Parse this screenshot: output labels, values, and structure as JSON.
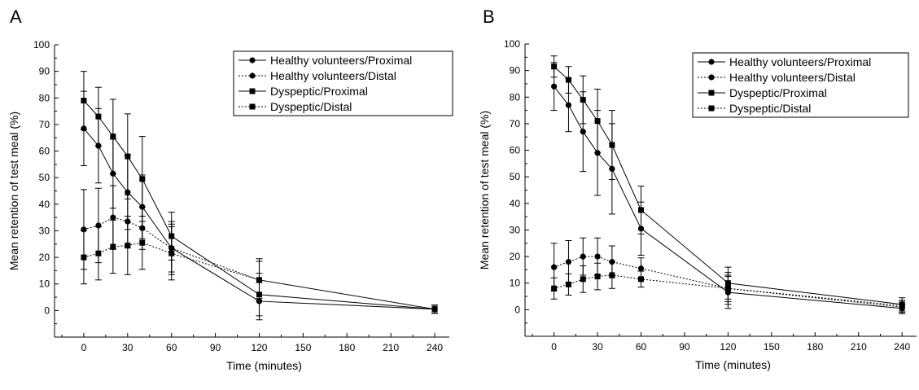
{
  "chart_data": [
    {
      "panel": "A",
      "type": "line",
      "xlabel": "Time (minutes)",
      "ylabel": "Mean retention of test meal (%)",
      "xlim": [
        -20,
        250
      ],
      "ylim": [
        -10,
        100
      ],
      "xticks": [
        0,
        30,
        60,
        90,
        120,
        150,
        180,
        210,
        240
      ],
      "yticks": [
        0,
        10,
        20,
        30,
        40,
        50,
        60,
        70,
        80,
        90,
        100
      ],
      "x": [
        0,
        10,
        20,
        30,
        40,
        60,
        120,
        240
      ],
      "legend_position": "top-right",
      "series": [
        {
          "name": "Healthy volunteers/Proximal",
          "marker": "circle",
          "line": "solid",
          "values": [
            68.5,
            62,
            51.5,
            44.5,
            39,
            23.5,
            3.5,
            0.5
          ],
          "errors": [
            14,
            14,
            13,
            14,
            12,
            10,
            7,
            1.5
          ]
        },
        {
          "name": "Healthy volunteers/Distal",
          "marker": "circle",
          "line": "dotted",
          "values": [
            30.5,
            32,
            35,
            33.5,
            31,
            23.5,
            11.5,
            0.5
          ],
          "errors": [
            15,
            14,
            12,
            10,
            8,
            9,
            7,
            1.5
          ]
        },
        {
          "name": "Dyspeptic/Proximal",
          "marker": "square",
          "line": "solid",
          "values": [
            79,
            73,
            65.5,
            58,
            49.5,
            28,
            6,
            0.5
          ],
          "errors": [
            11,
            11,
            14,
            16,
            16,
            9,
            8,
            1.5
          ]
        },
        {
          "name": "Dyspeptic/Distal",
          "marker": "square",
          "line": "dotted",
          "values": [
            20,
            21.5,
            24,
            24.5,
            25.5,
            21.5,
            11.5,
            0.5
          ],
          "errors": [
            10,
            10,
            10,
            11,
            10,
            10,
            8,
            1.5
          ]
        }
      ]
    },
    {
      "panel": "B",
      "type": "line",
      "xlabel": "Time (minutes)",
      "ylabel": "Mean retention of test meal (%)",
      "xlim": [
        -20,
        250
      ],
      "ylim": [
        -10,
        100
      ],
      "xticks": [
        0,
        30,
        60,
        90,
        120,
        150,
        180,
        210,
        240
      ],
      "yticks": [
        0,
        10,
        20,
        30,
        40,
        50,
        60,
        70,
        80,
        90,
        100
      ],
      "x": [
        0,
        10,
        20,
        30,
        40,
        60,
        120,
        240
      ],
      "legend_position": "top-right",
      "series": [
        {
          "name": "Healthy volunteers/Proximal",
          "marker": "circle",
          "line": "solid",
          "values": [
            84,
            77,
            67,
            59,
            53,
            30.5,
            6.5,
            0.5
          ],
          "errors": [
            9,
            10,
            15,
            16,
            17,
            10,
            6,
            1.5
          ]
        },
        {
          "name": "Healthy volunteers/Distal",
          "marker": "circle",
          "line": "dotted",
          "values": [
            16,
            18,
            20,
            20,
            18,
            15.5,
            8,
            1
          ],
          "errors": [
            9,
            8,
            7,
            7,
            6,
            4,
            6,
            2.5
          ]
        },
        {
          "name": "Dyspeptic/Proximal",
          "marker": "square",
          "line": "solid",
          "values": [
            91.5,
            86.5,
            79,
            71,
            62,
            37.5,
            10,
            2
          ],
          "errors": [
            4,
            5,
            9,
            12,
            13,
            9,
            6,
            2.5
          ]
        },
        {
          "name": "Dyspeptic/Distal",
          "marker": "square",
          "line": "dotted",
          "values": [
            8,
            9.5,
            11.5,
            12.5,
            13,
            11.5,
            8,
            1.5
          ],
          "errors": [
            4,
            4,
            5,
            5,
            5,
            3,
            5,
            2
          ]
        }
      ]
    }
  ]
}
